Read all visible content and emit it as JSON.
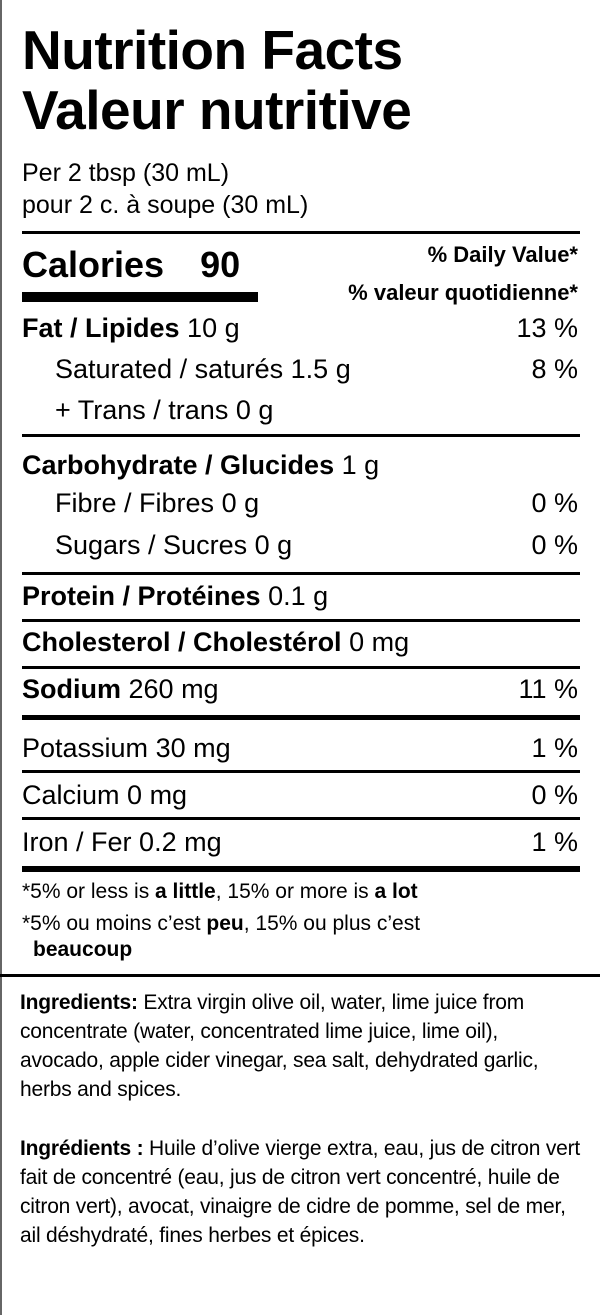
{
  "title_en": "Nutrition Facts",
  "title_fr": "Valeur nutritive",
  "serving_en": "Per 2 tbsp (30 mL)",
  "serving_fr": "pour 2 c. à soupe (30 mL)",
  "calories": {
    "label": "Calories",
    "value": "90"
  },
  "dv_en": "% Daily Value*",
  "dv_fr": "% valeur quotidienne*",
  "nutrients": [
    {
      "label": "Fat / Lipides",
      "amount": "10 g",
      "dv": "13 %"
    },
    {
      "label": "Saturated / saturés",
      "amount": "1.5 g",
      "dv": "8 %"
    },
    {
      "label": "+ Trans / trans",
      "amount": "0 g",
      "dv": ""
    },
    {
      "label": "Carbohydrate / Glucides",
      "amount": "1 g",
      "dv": ""
    },
    {
      "label": "Fibre / Fibres",
      "amount": "0 g",
      "dv": "0 %"
    },
    {
      "label": "Sugars / Sucres",
      "amount": "0 g",
      "dv": "0 %"
    },
    {
      "label": "Protein / Protéines",
      "amount": "0.1 g",
      "dv": ""
    },
    {
      "label": "Cholesterol / Cholestérol",
      "amount": "0 mg",
      "dv": ""
    },
    {
      "label": "Sodium",
      "amount": "260 mg",
      "dv": "11 %"
    },
    {
      "label": "Potassium",
      "amount": "30 mg",
      "dv": "1 %"
    },
    {
      "label": "Calcium",
      "amount": "0 mg",
      "dv": "0 %"
    },
    {
      "label": "Iron / Fer",
      "amount": "0.2 mg",
      "dv": "1 %"
    }
  ],
  "footnote_en": {
    "p1": "*5% or less is ",
    "b1": "a little",
    "p2": ", 15% or more is ",
    "b2": "a lot"
  },
  "footnote_fr": {
    "p1": "*5% ou moins c’est ",
    "b1": "peu",
    "p2": ", 15% ou plus c’est",
    "b2": "beaucoup"
  },
  "ingredients_en": {
    "label": "Ingredients:",
    "text": " Extra virgin olive oil, water, lime juice from concentrate (water, concentrated lime juice, lime oil), avocado, apple cider vinegar, sea salt, dehydrated garlic, herbs and spices."
  },
  "ingredients_fr": {
    "label": "Ingrédients :",
    "text": " Huile d’olive vierge extra, eau, jus de citron vert fait de concentré (eau, jus de citron vert concentré, huile de citron vert), avocat, vinaigre de cidre de pomme, sel de mer, ail déshydraté, fines herbes et épices."
  }
}
